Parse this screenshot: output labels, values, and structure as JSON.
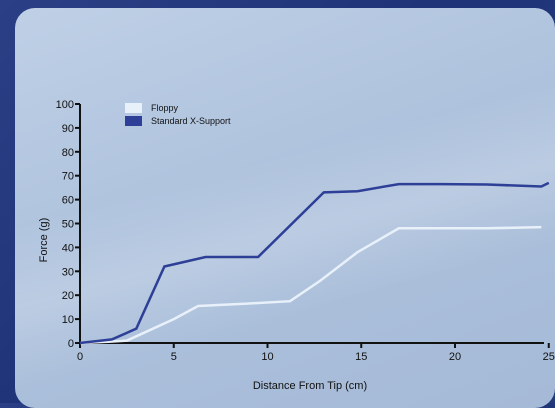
{
  "chart_data": {
    "type": "line",
    "title": "",
    "xlabel": "Distance From Tip (cm)",
    "ylabel": "Force (g)",
    "xlim": [
      0,
      25
    ],
    "ylim": [
      0,
      100
    ],
    "x_ticks": [
      0,
      5,
      10,
      15,
      20,
      25
    ],
    "x_tick_labels": [
      "0",
      "5",
      "10",
      "15",
      "20",
      "25"
    ],
    "y_ticks": [
      0,
      10,
      20,
      30,
      40,
      50,
      60,
      70,
      80,
      90,
      100
    ],
    "y_tick_labels": [
      "0",
      "10",
      "20",
      "30",
      "40",
      "50",
      "60",
      "70",
      "80",
      "90",
      "100"
    ],
    "grid": false,
    "legend_position": "top-left",
    "series": [
      {
        "name": "Floppy",
        "color": "#e8f0fa",
        "x": [
          0,
          1.5,
          2.5,
          5.0,
          6.3,
          8.9,
          11.2,
          12.8,
          14.8,
          17.0,
          19.3,
          21.7,
          24.6
        ],
        "y": [
          0,
          0.5,
          1.0,
          10,
          15.5,
          16.5,
          17.5,
          26,
          38,
          48,
          48,
          48,
          48.5
        ]
      },
      {
        "name": "Standard X-Support",
        "color": "#2d3f96",
        "x": [
          0,
          1.7,
          3.0,
          4.5,
          6.7,
          9.5,
          13.0,
          14.8,
          17.0,
          19.3,
          21.7,
          24.6,
          25
        ],
        "y": [
          0,
          1.5,
          6,
          32,
          36,
          36,
          63,
          63.5,
          66.5,
          66.5,
          66.3,
          65.5,
          67
        ]
      }
    ]
  }
}
